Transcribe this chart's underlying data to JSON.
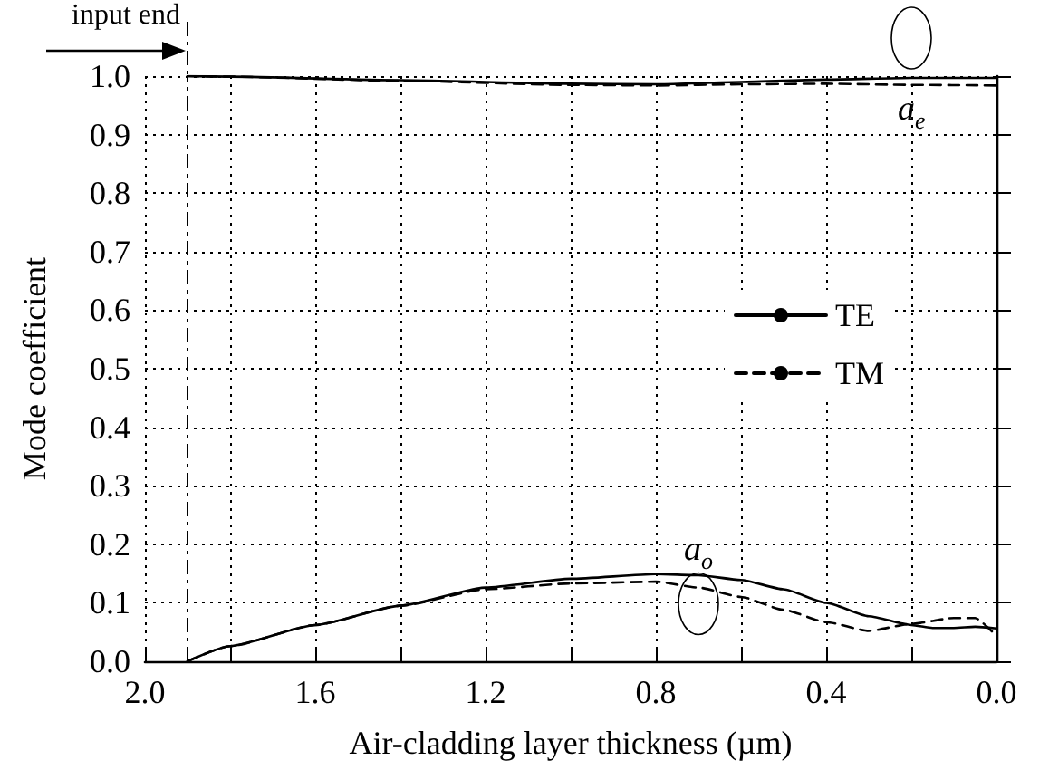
{
  "chart_data": {
    "type": "line",
    "xlabel": "Air-cladding layer thickness (µm)",
    "ylabel": "Mode coefficient",
    "series": [
      {
        "name": "TE",
        "color": "#000000",
        "x": [
          1.9,
          1.8,
          1.4,
          1.0,
          0.8,
          0.6,
          0.4,
          0.2,
          0.0
        ],
        "values": [
          1.0,
          0.999,
          0.993,
          0.987,
          0.986,
          0.99,
          0.994,
          0.997,
          0.997
        ]
      },
      {
        "name": "TM",
        "color": "#000000",
        "line_style": "dashed",
        "x": [
          1.9,
          1.8,
          1.4,
          1.0,
          0.8,
          0.6,
          0.4,
          0.2,
          0.0
        ],
        "values": [
          1.0,
          0.999,
          0.992,
          0.985,
          0.984,
          0.986,
          0.987,
          0.985,
          0.984
        ]
      },
      {
        "color": "#000000",
        "x": [
          1.9,
          1.8,
          1.6,
          1.4,
          1.2,
          1.0,
          0.8,
          0.7,
          0.6,
          0.5,
          0.4,
          0.3,
          0.2,
          0.15,
          0.1,
          0.05,
          0.0
        ],
        "values": [
          0.0,
          0.026,
          0.062,
          0.095,
          0.126,
          0.141,
          0.149,
          0.147,
          0.139,
          0.123,
          0.1,
          0.077,
          0.062,
          0.057,
          0.057,
          0.059,
          0.056
        ]
      },
      {
        "color": "#000000",
        "line_style": "dashed",
        "x": [
          1.9,
          1.8,
          1.6,
          1.4,
          1.2,
          1.0,
          0.8,
          0.7,
          0.6,
          0.5,
          0.4,
          0.3,
          0.2,
          0.1,
          0.05,
          0.0
        ],
        "values": [
          0.0,
          0.026,
          0.062,
          0.095,
          0.123,
          0.133,
          0.136,
          0.126,
          0.11,
          0.088,
          0.067,
          0.052,
          0.064,
          0.074,
          0.074,
          0.043
        ]
      }
    ],
    "xlim": [
      2.0,
      0.0
    ],
    "xticks": [
      {
        "value": 2.0,
        "label": "2.0"
      },
      {
        "value": 1.8,
        "label": null
      },
      {
        "value": 1.6,
        "label": "1.6"
      },
      {
        "value": 1.4,
        "label": null
      },
      {
        "value": 1.2,
        "label": "1.2"
      },
      {
        "value": 1.0,
        "label": null
      },
      {
        "value": 0.8,
        "label": "0.8"
      },
      {
        "value": 0.6,
        "label": null
      },
      {
        "value": 0.4,
        "label": "0.4"
      },
      {
        "value": 0.2,
        "label": null
      },
      {
        "value": 0.0,
        "label": "0.0"
      }
    ],
    "ylim": [
      0.0,
      1.0
    ],
    "yticks": [
      {
        "value": 0.0,
        "label": "0.0"
      },
      {
        "value": 0.1,
        "label": "0.1"
      },
      {
        "value": 0.2,
        "label": "0.2"
      },
      {
        "value": 0.3,
        "label": "0.3"
      },
      {
        "value": 0.4,
        "label": "0.4"
      },
      {
        "value": 0.5,
        "label": "0.5"
      },
      {
        "value": 0.6,
        "label": "0.6"
      },
      {
        "value": 0.7,
        "label": "0.7"
      },
      {
        "value": 0.8,
        "label": "0.8"
      },
      {
        "value": 0.9,
        "label": "0.9"
      },
      {
        "value": 1.0,
        "label": "1.0"
      }
    ],
    "ref_lines": [
      {
        "axis": "x",
        "value": 1.9,
        "label": "input end"
      }
    ],
    "annotations": [
      "a$_{e}$",
      "a$_{o}$"
    ],
    "grid": true,
    "legend": "right",
    "marker": "none",
    "line_style": "solid"
  }
}
